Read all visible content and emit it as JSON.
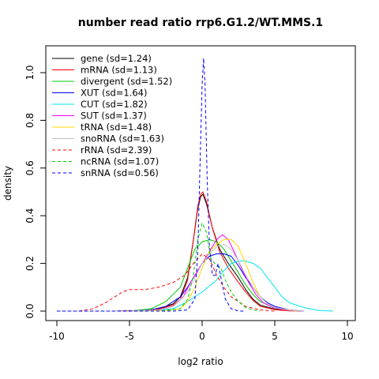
{
  "chart_data": {
    "type": "line",
    "title": "number read ratio rrp6.G1.2/WT.MMS.1",
    "xlabel": "log2 ratio",
    "ylabel": "density",
    "xlim": [
      -10,
      10
    ],
    "ylim": [
      0,
      1.1
    ],
    "xticks": [
      "-10",
      "-5",
      "0",
      "5",
      "10"
    ],
    "xtick_values": [
      -10,
      -5,
      0,
      5,
      10
    ],
    "yticks": [
      "0.0",
      "0.2",
      "0.4",
      "0.6",
      "0.8",
      "1.0"
    ],
    "ytick_values": [
      0,
      0.2,
      0.4,
      0.6,
      0.8,
      1.0
    ],
    "grid": false,
    "legend_position": "top-left",
    "series": [
      {
        "name": "gene (sd=1.24)",
        "color": "#000000",
        "dash": false,
        "points": [
          [
            -10,
            0
          ],
          [
            -6,
            0
          ],
          [
            -4,
            0.003
          ],
          [
            -3,
            0.01
          ],
          [
            -2,
            0.03
          ],
          [
            -1.5,
            0.06
          ],
          [
            -1,
            0.14
          ],
          [
            -0.6,
            0.3
          ],
          [
            -0.3,
            0.43
          ],
          [
            -0.1,
            0.48
          ],
          [
            0.05,
            0.49
          ],
          [
            0.3,
            0.45
          ],
          [
            0.7,
            0.35
          ],
          [
            1.2,
            0.26
          ],
          [
            1.8,
            0.2
          ],
          [
            2.5,
            0.14
          ],
          [
            3,
            0.09
          ],
          [
            3.5,
            0.05
          ],
          [
            4,
            0.025
          ],
          [
            5,
            0.008
          ],
          [
            6,
            0.002
          ],
          [
            7,
            0
          ]
        ]
      },
      {
        "name": "mRNA (sd=1.13)",
        "color": "#ff0000",
        "dash": false,
        "points": [
          [
            -10,
            0
          ],
          [
            -6,
            0
          ],
          [
            -4,
            0.002
          ],
          [
            -3,
            0.008
          ],
          [
            -2,
            0.025
          ],
          [
            -1.5,
            0.05
          ],
          [
            -1,
            0.13
          ],
          [
            -0.6,
            0.3
          ],
          [
            -0.3,
            0.44
          ],
          [
            -0.1,
            0.49
          ],
          [
            0.05,
            0.5
          ],
          [
            0.3,
            0.46
          ],
          [
            0.7,
            0.35
          ],
          [
            1.2,
            0.25
          ],
          [
            1.8,
            0.18
          ],
          [
            2.5,
            0.12
          ],
          [
            3,
            0.08
          ],
          [
            3.5,
            0.045
          ],
          [
            4,
            0.02
          ],
          [
            5,
            0.006
          ],
          [
            6,
            0.001
          ],
          [
            7,
            0
          ]
        ]
      },
      {
        "name": "divergent (sd=1.52)",
        "color": "#00cd00",
        "dash": false,
        "points": [
          [
            -10,
            0
          ],
          [
            -5,
            0
          ],
          [
            -3.5,
            0.01
          ],
          [
            -2.5,
            0.04
          ],
          [
            -1.5,
            0.1
          ],
          [
            -1,
            0.18
          ],
          [
            -0.5,
            0.26
          ],
          [
            0,
            0.29
          ],
          [
            0.5,
            0.3
          ],
          [
            1,
            0.29
          ],
          [
            1.5,
            0.26
          ],
          [
            2,
            0.21
          ],
          [
            2.5,
            0.16
          ],
          [
            3,
            0.11
          ],
          [
            3.5,
            0.07
          ],
          [
            4,
            0.04
          ],
          [
            5,
            0.012
          ],
          [
            6,
            0.003
          ],
          [
            7,
            0
          ]
        ]
      },
      {
        "name": "XUT (sd=1.64)",
        "color": "#0000ff",
        "dash": false,
        "points": [
          [
            -10,
            0
          ],
          [
            -5,
            0
          ],
          [
            -3.5,
            0.005
          ],
          [
            -2.5,
            0.02
          ],
          [
            -1.5,
            0.06
          ],
          [
            -1,
            0.1
          ],
          [
            -0.5,
            0.15
          ],
          [
            0,
            0.2
          ],
          [
            0.5,
            0.23
          ],
          [
            1,
            0.24
          ],
          [
            1.5,
            0.24
          ],
          [
            2,
            0.23
          ],
          [
            2.5,
            0.19
          ],
          [
            3,
            0.14
          ],
          [
            3.5,
            0.1
          ],
          [
            4,
            0.06
          ],
          [
            4.5,
            0.035
          ],
          [
            5,
            0.02
          ],
          [
            6,
            0.005
          ],
          [
            7,
            0
          ]
        ]
      },
      {
        "name": "CUT (sd=1.82)",
        "color": "#00e5ee",
        "dash": false,
        "points": [
          [
            -10,
            0
          ],
          [
            -4,
            0
          ],
          [
            -2,
            0.01
          ],
          [
            -1,
            0.04
          ],
          [
            0,
            0.08
          ],
          [
            1,
            0.13
          ],
          [
            1.5,
            0.17
          ],
          [
            2,
            0.2
          ],
          [
            2.5,
            0.21
          ],
          [
            3,
            0.21
          ],
          [
            3.5,
            0.2
          ],
          [
            4,
            0.18
          ],
          [
            4.5,
            0.14
          ],
          [
            5,
            0.1
          ],
          [
            5.5,
            0.06
          ],
          [
            6,
            0.035
          ],
          [
            7,
            0.015
          ],
          [
            8,
            0.003
          ],
          [
            9,
            0
          ]
        ]
      },
      {
        "name": "SUT (sd=1.37)",
        "color": "#ff00ff",
        "dash": false,
        "points": [
          [
            -10,
            0
          ],
          [
            -5,
            0
          ],
          [
            -3,
            0.005
          ],
          [
            -2,
            0.02
          ],
          [
            -1.3,
            0.06
          ],
          [
            -0.7,
            0.13
          ],
          [
            0,
            0.2
          ],
          [
            0.5,
            0.25
          ],
          [
            1,
            0.3
          ],
          [
            1.4,
            0.32
          ],
          [
            1.8,
            0.3
          ],
          [
            2.2,
            0.25
          ],
          [
            2.7,
            0.18
          ],
          [
            3.2,
            0.12
          ],
          [
            3.7,
            0.07
          ],
          [
            4.2,
            0.035
          ],
          [
            5,
            0.012
          ],
          [
            6,
            0.003
          ],
          [
            7,
            0
          ]
        ]
      },
      {
        "name": "tRNA (sd=1.48)",
        "color": "#ffd700",
        "dash": false,
        "points": [
          [
            -10,
            0
          ],
          [
            -5,
            0
          ],
          [
            -2.5,
            0.002
          ],
          [
            -1.5,
            0.01
          ],
          [
            -1,
            0.04
          ],
          [
            -0.5,
            0.1
          ],
          [
            0,
            0.18
          ],
          [
            0.5,
            0.25
          ],
          [
            1,
            0.28
          ],
          [
            1.5,
            0.3
          ],
          [
            2,
            0.3
          ],
          [
            2.5,
            0.27
          ],
          [
            3,
            0.2
          ],
          [
            3.5,
            0.12
          ],
          [
            4,
            0.06
          ],
          [
            4.5,
            0.03
          ],
          [
            5,
            0.015
          ],
          [
            6,
            0.005
          ],
          [
            6.5,
            0
          ]
        ]
      },
      {
        "name": "snoRNA (sd=1.63)",
        "color": "#bfbfbf",
        "dash": false,
        "points": [
          [
            -10,
            0
          ],
          [
            -5,
            0
          ],
          [
            -3,
            0.005
          ],
          [
            -2,
            0.02
          ],
          [
            -1,
            0.08
          ],
          [
            -0.5,
            0.14
          ],
          [
            0,
            0.2
          ],
          [
            0.5,
            0.24
          ],
          [
            1,
            0.27
          ],
          [
            1.5,
            0.28
          ],
          [
            2,
            0.26
          ],
          [
            2.5,
            0.21
          ],
          [
            3,
            0.15
          ],
          [
            3.5,
            0.1
          ],
          [
            4,
            0.06
          ],
          [
            4.5,
            0.03
          ],
          [
            5,
            0.015
          ],
          [
            6,
            0.004
          ],
          [
            7,
            0
          ]
        ]
      },
      {
        "name": "rRNA (sd=2.39)",
        "color": "#ff0000",
        "dash": true,
        "points": [
          [
            -10,
            0
          ],
          [
            -8.5,
            0
          ],
          [
            -7.5,
            0.01
          ],
          [
            -6.5,
            0.04
          ],
          [
            -5.5,
            0.08
          ],
          [
            -5,
            0.09
          ],
          [
            -4,
            0.09
          ],
          [
            -3,
            0.1
          ],
          [
            -2,
            0.12
          ],
          [
            -1.2,
            0.15
          ],
          [
            -0.6,
            0.2
          ],
          [
            0,
            0.24
          ],
          [
            0.5,
            0.22
          ],
          [
            1,
            0.15
          ],
          [
            1.5,
            0.1
          ],
          [
            2,
            0.06
          ],
          [
            2.5,
            0.04
          ],
          [
            3,
            0.02
          ],
          [
            4,
            0.005
          ],
          [
            5,
            0
          ]
        ]
      },
      {
        "name": "ncRNA (sd=1.07)",
        "color": "#00cd00",
        "dash": true,
        "points": [
          [
            -10,
            0
          ],
          [
            -3,
            0
          ],
          [
            -1.5,
            0.01
          ],
          [
            -1,
            0.05
          ],
          [
            -0.6,
            0.15
          ],
          [
            -0.3,
            0.3
          ],
          [
            0,
            0.37
          ],
          [
            0.3,
            0.33
          ],
          [
            0.6,
            0.22
          ],
          [
            1,
            0.19
          ],
          [
            1.3,
            0.18
          ],
          [
            1.6,
            0.13
          ],
          [
            2,
            0.08
          ],
          [
            2.5,
            0.04
          ],
          [
            3,
            0.015
          ],
          [
            3.5,
            0.005
          ],
          [
            4,
            0
          ]
        ]
      },
      {
        "name": "snRNA (sd=0.56)",
        "color": "#0000ff",
        "dash": true,
        "points": [
          [
            -10,
            0
          ],
          [
            -2,
            0
          ],
          [
            -1,
            0.005
          ],
          [
            -0.5,
            0.05
          ],
          [
            -0.3,
            0.25
          ],
          [
            -0.15,
            0.6
          ],
          [
            0,
            0.95
          ],
          [
            0.1,
            1.06
          ],
          [
            0.2,
            0.95
          ],
          [
            0.35,
            0.55
          ],
          [
            0.5,
            0.28
          ],
          [
            0.7,
            0.15
          ],
          [
            0.9,
            0.15
          ],
          [
            1.1,
            0.2
          ],
          [
            1.3,
            0.14
          ],
          [
            1.6,
            0.05
          ],
          [
            2,
            0.01
          ],
          [
            2.5,
            0
          ],
          [
            3,
            0
          ]
        ]
      }
    ]
  }
}
